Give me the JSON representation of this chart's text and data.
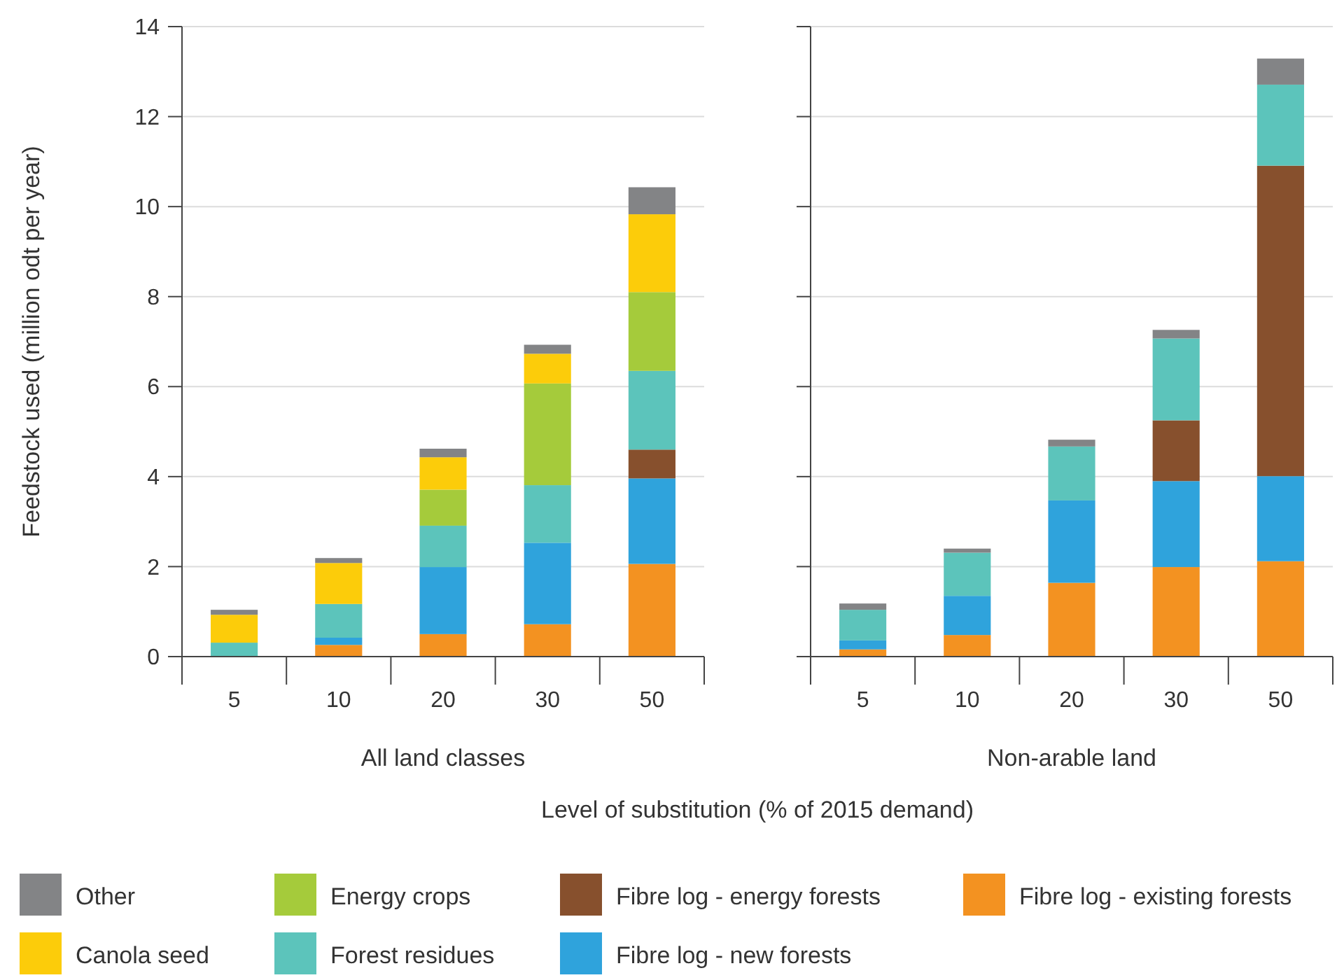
{
  "chart_data": [
    {
      "type": "bar",
      "title": "All land classes",
      "xlabel": "Level of substitution (% of 2015 demand)",
      "ylabel": "Feedstock used (million odt per year)",
      "categories": [
        "5",
        "10",
        "20",
        "30",
        "50"
      ],
      "stacked": true,
      "grid": "y",
      "legend": "bottom",
      "ylim": [
        0,
        14
      ],
      "yticks": [
        0,
        2,
        4,
        6,
        8,
        10,
        12,
        14
      ],
      "series": [
        {
          "name": "Fibre log - existing forests",
          "color": "#f39221",
          "values": [
            0,
            0.26,
            0.5,
            0.72,
            2.06
          ]
        },
        {
          "name": "Fibre log - new forests",
          "color": "#2fa3dc",
          "values": [
            0,
            0.16,
            1.49,
            1.81,
            1.9
          ]
        },
        {
          "name": "Fibre log - energy forests",
          "color": "#87502d",
          "values": [
            0,
            0,
            0,
            0,
            0.64
          ]
        },
        {
          "name": "Forest residues",
          "color": "#5cc4bb",
          "values": [
            0.31,
            0.75,
            0.92,
            1.28,
            1.75
          ]
        },
        {
          "name": "Energy crops",
          "color": "#a5cb3b",
          "values": [
            0,
            0,
            0.8,
            2.26,
            1.75
          ]
        },
        {
          "name": "Canola seed",
          "color": "#fccc0a",
          "values": [
            0.62,
            0.91,
            0.72,
            0.66,
            1.73
          ]
        },
        {
          "name": "Other",
          "color": "#838486",
          "values": [
            0.11,
            0.11,
            0.19,
            0.2,
            0.6
          ]
        }
      ]
    },
    {
      "type": "bar",
      "title": "Non-arable land",
      "categories": [
        "5",
        "10",
        "20",
        "30",
        "50"
      ],
      "stacked": true,
      "grid": "y",
      "tick_labels": "x",
      "ylim": [
        0,
        14
      ],
      "yticks": [
        0,
        2,
        4,
        6,
        8,
        10,
        12,
        14
      ],
      "series": [
        {
          "color": "#f39221",
          "values": [
            0.16,
            0.48,
            1.64,
            1.99,
            2.12
          ]
        },
        {
          "color": "#2fa3dc",
          "values": [
            0.2,
            0.87,
            1.83,
            1.91,
            1.89
          ]
        },
        {
          "color": "#87502d",
          "values": [
            0,
            0,
            0,
            1.35,
            6.9
          ]
        },
        {
          "color": "#5cc4bb",
          "values": [
            0.68,
            0.96,
            1.2,
            1.82,
            1.8
          ]
        },
        {
          "color": "#a5cb3b",
          "values": [
            0,
            0,
            0,
            0,
            0
          ]
        },
        {
          "color": "#fccc0a",
          "values": [
            0,
            0,
            0,
            0,
            0
          ]
        },
        {
          "color": "#838486",
          "values": [
            0.14,
            0.09,
            0.15,
            0.19,
            0.58
          ]
        }
      ]
    }
  ]
}
